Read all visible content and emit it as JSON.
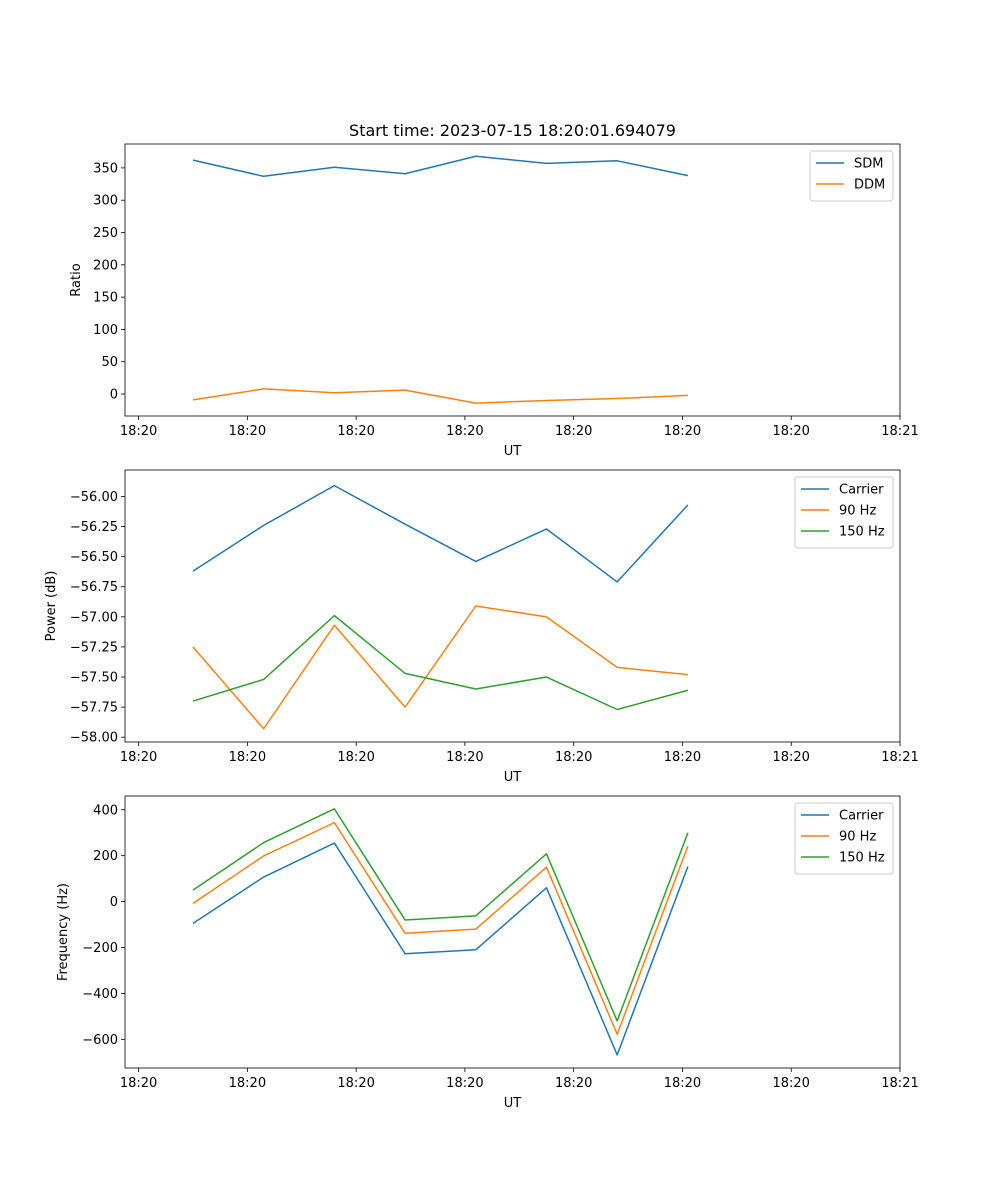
{
  "title": "Start time: 2023-07-15 18:20:01.694079",
  "colors": {
    "blue": "#1f77b4",
    "orange": "#ff7f0e",
    "green": "#2ca02c"
  },
  "chart_data": [
    {
      "type": "line",
      "xlabel": "UT",
      "ylabel": "Ratio",
      "x_tick_labels": [
        "18:20",
        "18:20",
        "18:20",
        "18:20",
        "18:20",
        "18:20",
        "18:20",
        "18:21"
      ],
      "x_tick_positions": [
        0,
        1,
        2,
        3,
        4,
        5,
        6,
        7
      ],
      "xlim": [
        -0.125,
        7.0
      ],
      "x": [
        0.5,
        1.15,
        1.8,
        2.45,
        3.1,
        3.75,
        4.4,
        5.05
      ],
      "ylim": [
        -34,
        387
      ],
      "y_ticks": [
        0,
        50,
        100,
        150,
        200,
        250,
        300,
        350
      ],
      "y_tick_labels": [
        "0",
        "50",
        "100",
        "150",
        "200",
        "250",
        "300",
        "350"
      ],
      "legend": "top-right",
      "series": [
        {
          "name": "SDM",
          "color": "#1f77b4",
          "values": [
            362,
            337,
            351,
            341,
            368,
            357,
            361,
            338
          ]
        },
        {
          "name": "DDM",
          "color": "#ff7f0e",
          "values": [
            -9,
            8,
            2,
            6,
            -14,
            -10,
            -7,
            -2
          ]
        }
      ]
    },
    {
      "type": "line",
      "xlabel": "UT",
      "ylabel": "Power (dB)",
      "x_tick_labels": [
        "18:20",
        "18:20",
        "18:20",
        "18:20",
        "18:20",
        "18:20",
        "18:20",
        "18:21"
      ],
      "x_tick_positions": [
        0,
        1,
        2,
        3,
        4,
        5,
        6,
        7
      ],
      "xlim": [
        -0.125,
        7.0
      ],
      "x": [
        0.5,
        1.15,
        1.8,
        2.45,
        3.1,
        3.75,
        4.4,
        5.05
      ],
      "ylim": [
        -58.04,
        -55.78
      ],
      "y_ticks": [
        -58.0,
        -57.75,
        -57.5,
        -57.25,
        -57.0,
        -56.75,
        -56.5,
        -56.25,
        -56.0
      ],
      "y_tick_labels": [
        "−58.00",
        "−57.75",
        "−57.50",
        "−57.25",
        "−57.00",
        "−56.75",
        "−56.50",
        "−56.25",
        "−56.00"
      ],
      "legend": "top-right",
      "series": [
        {
          "name": "Carrier",
          "color": "#1f77b4",
          "values": [
            -56.62,
            -56.24,
            -55.91,
            -56.23,
            -56.54,
            -56.27,
            -56.71,
            -56.07
          ]
        },
        {
          "name": "90 Hz",
          "color": "#ff7f0e",
          "values": [
            -57.25,
            -57.93,
            -57.07,
            -57.75,
            -56.91,
            -57.0,
            -57.42,
            -57.48
          ]
        },
        {
          "name": "150 Hz",
          "color": "#2ca02c",
          "values": [
            -57.7,
            -57.52,
            -56.99,
            -57.47,
            -57.6,
            -57.5,
            -57.77,
            -57.61
          ]
        }
      ]
    },
    {
      "type": "line",
      "xlabel": "UT",
      "ylabel": "Frequency (Hz)",
      "x_tick_labels": [
        "18:20",
        "18:20",
        "18:20",
        "18:20",
        "18:20",
        "18:20",
        "18:20",
        "18:21"
      ],
      "x_tick_positions": [
        0,
        1,
        2,
        3,
        4,
        5,
        6,
        7
      ],
      "xlim": [
        -0.125,
        7.0
      ],
      "x": [
        0.5,
        1.15,
        1.8,
        2.45,
        3.1,
        3.75,
        4.4,
        5.05
      ],
      "ylim": [
        -725,
        460
      ],
      "y_ticks": [
        -600,
        -400,
        -200,
        0,
        200,
        400
      ],
      "y_tick_labels": [
        "−600",
        "−400",
        "−200",
        "0",
        "200",
        "400"
      ],
      "legend": "top-right",
      "series": [
        {
          "name": "Carrier",
          "color": "#1f77b4",
          "values": [
            -95,
            107,
            255,
            -227,
            -210,
            60,
            -668,
            153
          ]
        },
        {
          "name": "90 Hz",
          "color": "#ff7f0e",
          "values": [
            -8,
            199,
            344,
            -138,
            -120,
            150,
            -578,
            242
          ]
        },
        {
          "name": "150 Hz",
          "color": "#2ca02c",
          "values": [
            50,
            257,
            404,
            -80,
            -62,
            208,
            -520,
            300
          ]
        }
      ]
    }
  ]
}
